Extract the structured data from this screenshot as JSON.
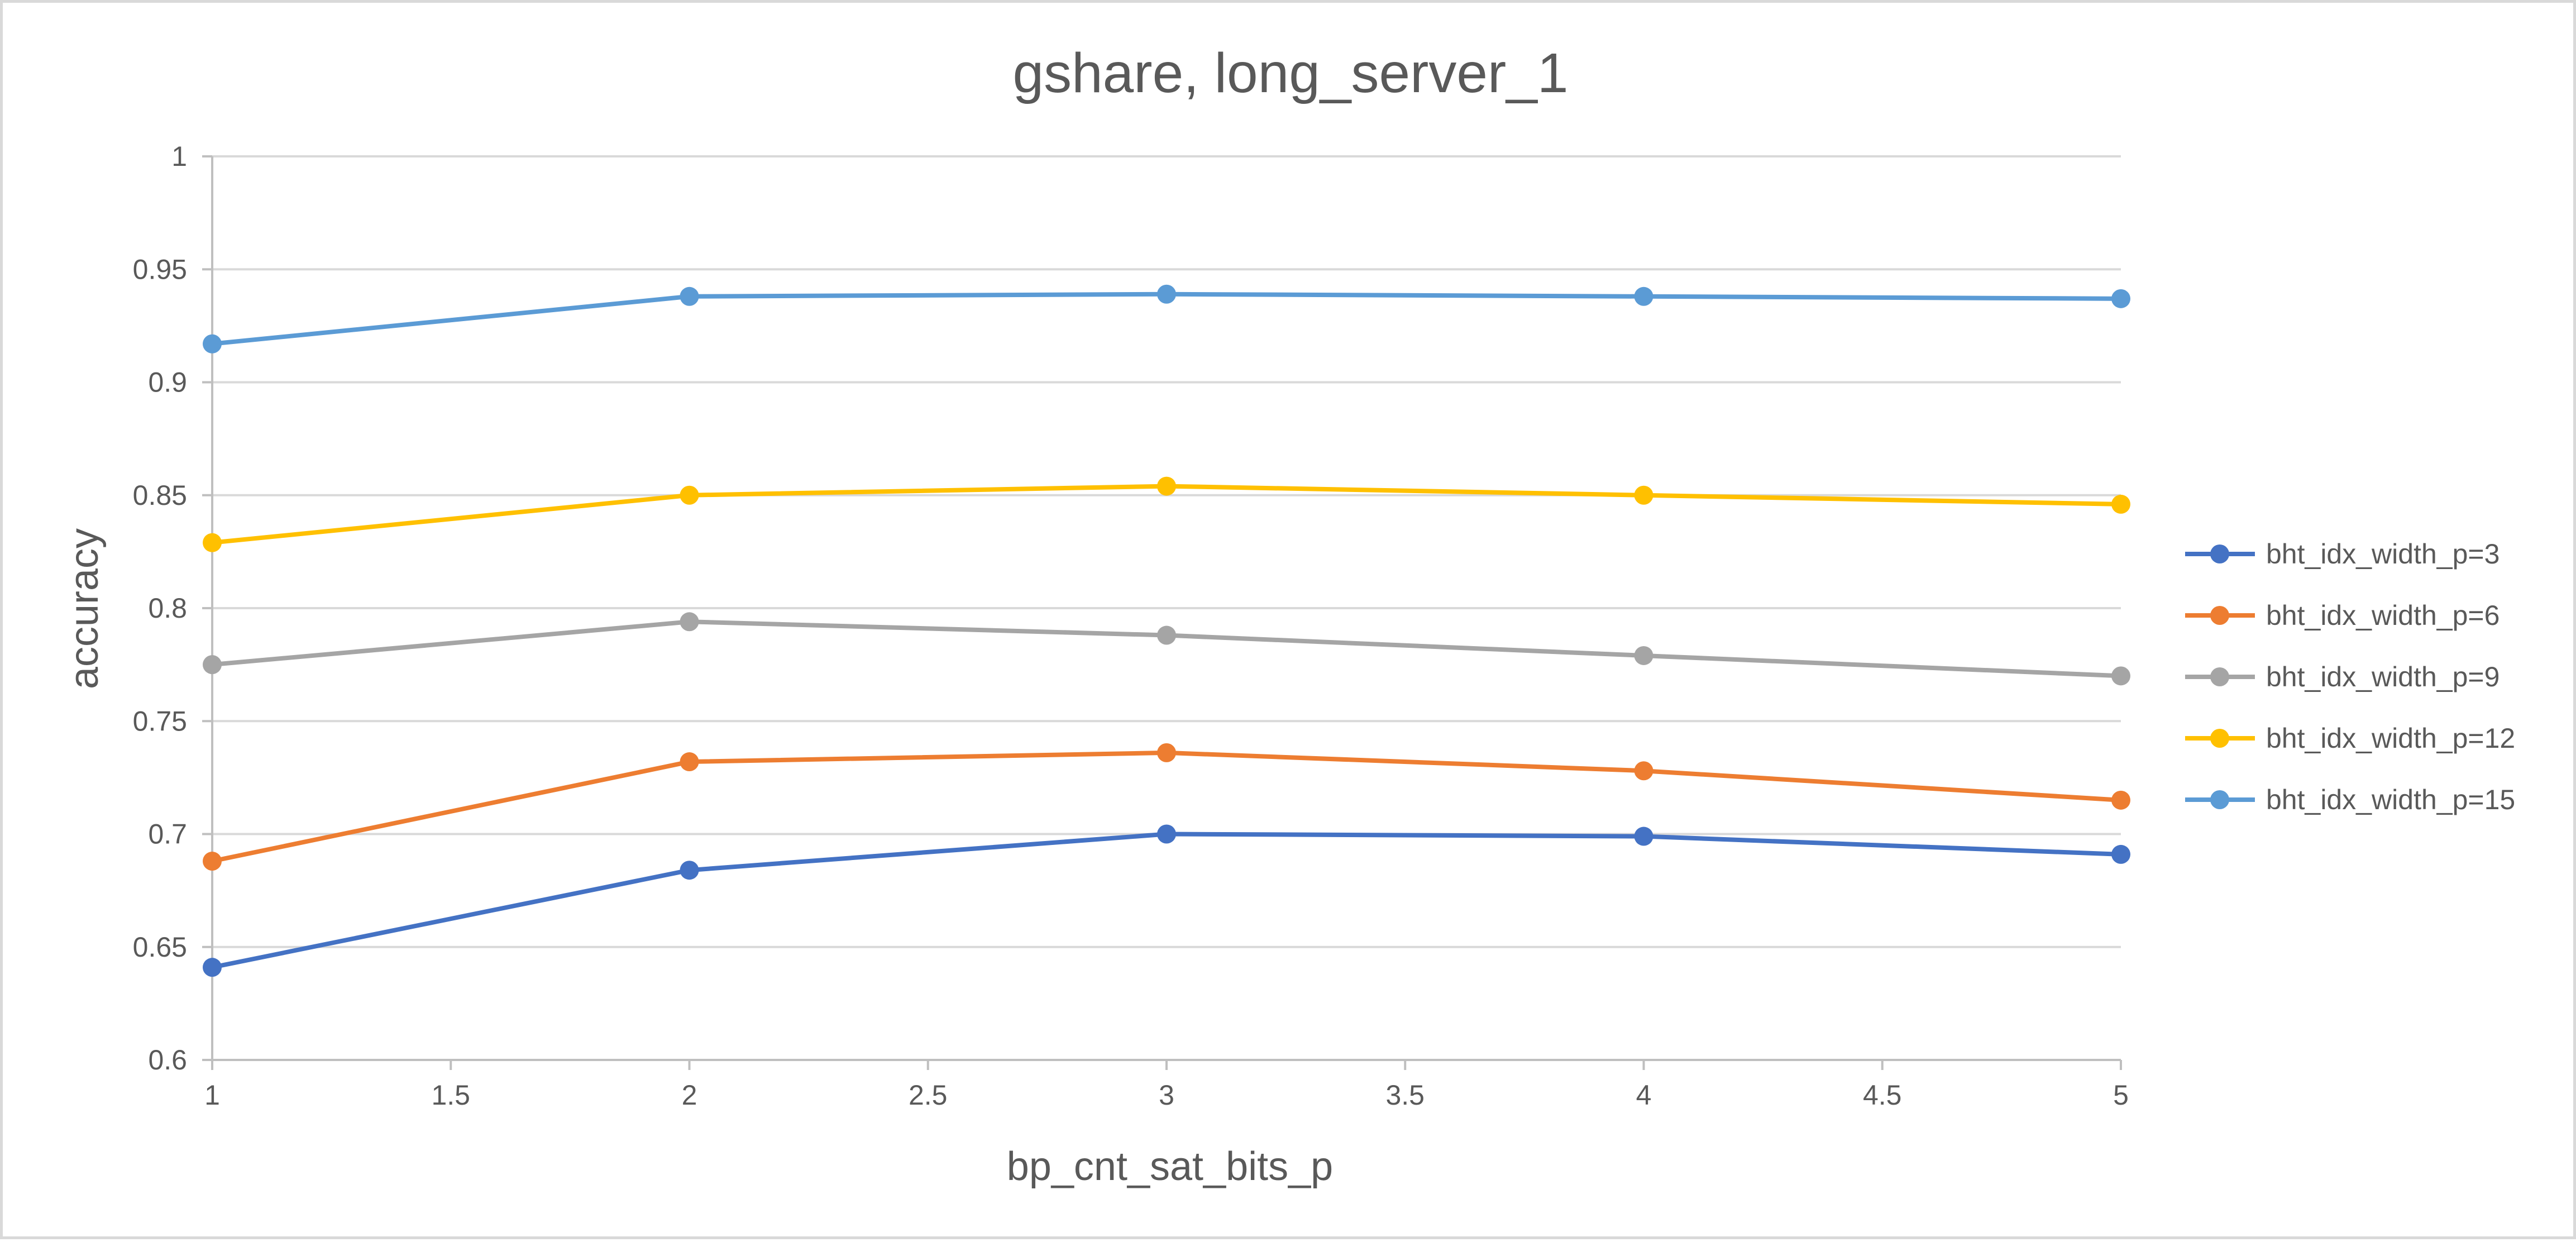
{
  "chart_data": {
    "type": "line",
    "title": "gshare, long_server_1",
    "xlabel": "bp_cnt_sat_bits_p",
    "ylabel": "accuracy",
    "xlim": [
      1,
      5
    ],
    "ylim": [
      0.6,
      1
    ],
    "xticks": [
      "1",
      "1.5",
      "2",
      "2.5",
      "3",
      "3.5",
      "4",
      "4.5",
      "5"
    ],
    "xtick_values": [
      1,
      1.5,
      2,
      2.5,
      3,
      3.5,
      4,
      4.5,
      5
    ],
    "yticks": [
      "0.6",
      "0.65",
      "0.7",
      "0.75",
      "0.8",
      "0.85",
      "0.9",
      "0.95",
      "1"
    ],
    "ytick_values": [
      0.6,
      0.65,
      0.7,
      0.75,
      0.8,
      0.85,
      0.9,
      0.95,
      1.0
    ],
    "grid": "horizontal",
    "legend_position": "right",
    "x": [
      1,
      2,
      3,
      4,
      5
    ],
    "series": [
      {
        "name": "bht_idx_width_p=3",
        "color": "#4472c4",
        "values": [
          0.641,
          0.684,
          0.7,
          0.699,
          0.691
        ]
      },
      {
        "name": "bht_idx_width_p=6",
        "color": "#ed7d31",
        "values": [
          0.688,
          0.732,
          0.736,
          0.728,
          0.715
        ]
      },
      {
        "name": "bht_idx_width_p=9",
        "color": "#a5a5a5",
        "values": [
          0.775,
          0.794,
          0.788,
          0.779,
          0.77
        ]
      },
      {
        "name": "bht_idx_width_p=12",
        "color": "#ffc000",
        "values": [
          0.829,
          0.85,
          0.854,
          0.85,
          0.846
        ]
      },
      {
        "name": "bht_idx_width_p=15",
        "color": "#5b9bd5",
        "values": [
          0.917,
          0.938,
          0.939,
          0.938,
          0.937
        ]
      }
    ]
  }
}
